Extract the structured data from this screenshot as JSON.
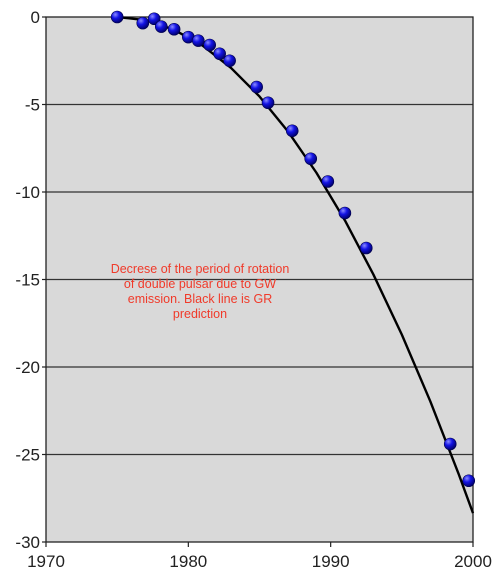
{
  "chart_data": {
    "type": "scatter",
    "title": "",
    "xlabel": "",
    "ylabel": "",
    "xlim": [
      1970,
      2000
    ],
    "ylim": [
      -30,
      0
    ],
    "grid": "horizontal",
    "x_ticks": [
      1970,
      1980,
      1990,
      2000
    ],
    "x_tick_labels": [
      "1970",
      "1980",
      "1990",
      "2000"
    ],
    "y_ticks": [
      0,
      -5,
      -10,
      -15,
      -20,
      -25,
      -30
    ],
    "y_tick_labels": [
      "0",
      "-5",
      "-10",
      "-15",
      "-20",
      "-25",
      "-30"
    ],
    "annotation": "Decrese of the period of rotation of double pulsar due to GW emission. Black line is GR prediction",
    "colors": {
      "points": "#1414e6",
      "curve": "#000000",
      "plot_background": "#d9d9d9",
      "grid": "#333333",
      "annotation": "#f03a2a"
    },
    "series": [
      {
        "type": "scatter",
        "x": [
          1975.0,
          1976.8,
          1977.6,
          1978.1,
          1979.0,
          1980.0,
          1980.7,
          1981.5,
          1982.2,
          1982.9,
          1984.8,
          1985.6,
          1987.3,
          1988.6,
          1989.8,
          1991.0,
          1992.5,
          1998.4,
          1999.7
        ],
        "values": [
          0.0,
          -0.35,
          -0.1,
          -0.55,
          -0.7,
          -1.15,
          -1.35,
          -1.6,
          -2.1,
          -2.5,
          -4.0,
          -4.9,
          -6.5,
          -8.1,
          -9.4,
          -11.2,
          -13.2,
          -24.4,
          -26.5
        ]
      },
      {
        "type": "line",
        "x": [
          1975.0,
          1977.0,
          1979.0,
          1981.0,
          1983.0,
          1985.0,
          1987.0,
          1989.0,
          1991.0,
          1993.0,
          1995.0,
          1997.0,
          1999.0,
          2000.0
        ],
        "values": [
          0.0,
          -0.18,
          -0.73,
          -1.63,
          -2.91,
          -4.54,
          -6.54,
          -8.9,
          -11.62,
          -14.71,
          -18.15,
          -21.96,
          -26.13,
          -28.35
        ]
      }
    ]
  }
}
